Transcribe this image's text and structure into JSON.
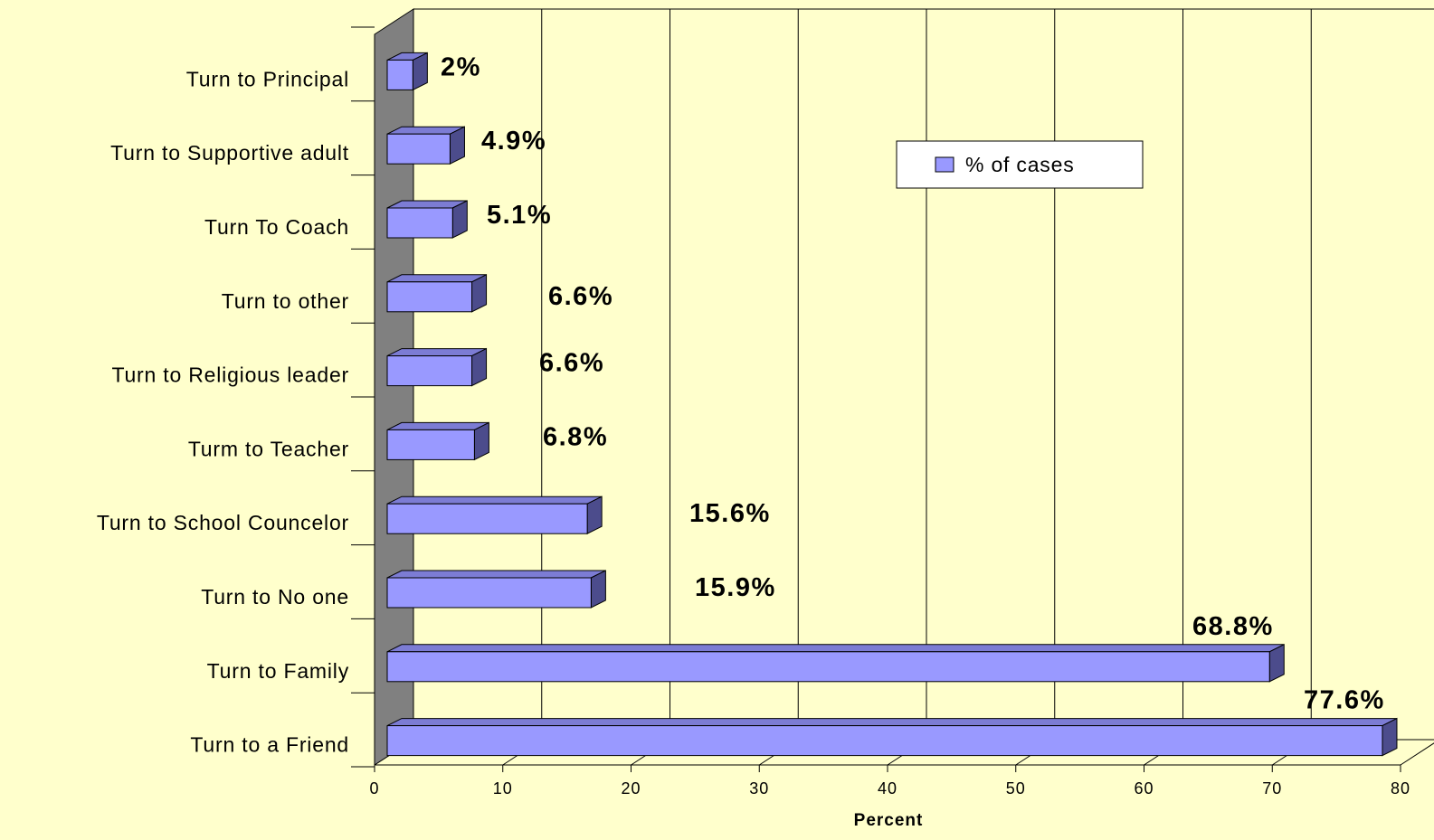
{
  "chart_data": {
    "type": "bar",
    "orientation": "horizontal",
    "three_d": true,
    "categories": [
      "Turn to Principal",
      "Turn to Supportive adult",
      "Turn To Coach",
      "Turn to other",
      "Turn to Religious leader",
      "Turm to Teacher",
      "Turn to School Councelor",
      "Turn to No one",
      "Turn to Family",
      "Turn to a Friend"
    ],
    "series": [
      {
        "name": "% of cases",
        "values": [
          2,
          4.9,
          5.1,
          6.6,
          6.6,
          6.8,
          15.6,
          15.9,
          68.8,
          77.6
        ],
        "data_labels": [
          "2%",
          "4.9%",
          "5.1%",
          "6.6%",
          "6.6%",
          "6.8%",
          "15.6%",
          "15.9%",
          "68.8%",
          "77.6%"
        ]
      }
    ],
    "xlabel": "Percent",
    "xlim": [
      0,
      80
    ],
    "xticks": [
      "0",
      "10",
      "20",
      "30",
      "40",
      "50",
      "60",
      "70",
      "80"
    ],
    "grid": true,
    "legend": "top-right",
    "colors": {
      "background": "#ffffcc",
      "bar_front": "#9999ff",
      "bar_top": "#7c7cd4",
      "bar_side": "#4c4c8c",
      "wall": "#808080",
      "outline": "#000000"
    }
  }
}
